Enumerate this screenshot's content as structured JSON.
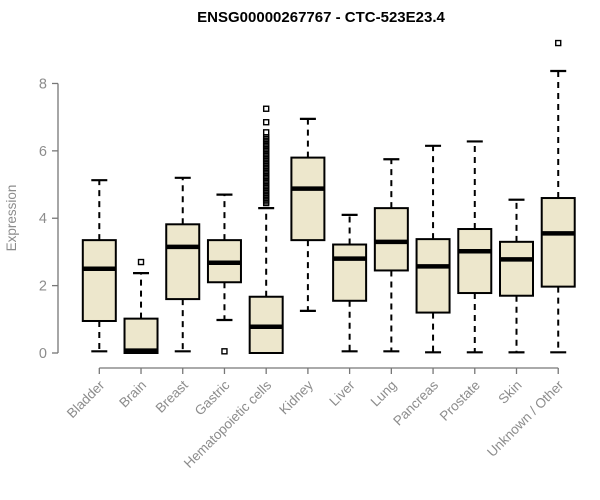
{
  "colors": {
    "background": "#FFFFFF",
    "box_fill": "#EDE7CC",
    "box_stroke": "#000000",
    "median": "#000000",
    "whisker": "#000000",
    "outlier": "#000000",
    "axis_line": "#777777",
    "axis_text": "#8C8C8C",
    "title_text": "#000000"
  },
  "chart_data": {
    "type": "boxplot",
    "title": "ENSG00000267767 - CTC-523E23.4",
    "ylabel": "Expression",
    "xlabel": "",
    "ylim": [
      0,
      8
    ],
    "yticks": [
      0,
      2,
      4,
      6,
      8
    ],
    "grid": false,
    "legend": "none",
    "categories": [
      "Bladder",
      "Brain",
      "Breast",
      "Gastric",
      "Hematopoietic cells",
      "Kidney",
      "Liver",
      "Lung",
      "Pancreas",
      "Prostate",
      "Skin",
      "Unknown / Other"
    ],
    "series": [
      {
        "category": "Bladder",
        "low": 0.05,
        "q1": 0.95,
        "median": 2.5,
        "q3": 3.35,
        "high": 5.13,
        "outliers": []
      },
      {
        "category": "Brain",
        "low": null,
        "q1": 0,
        "median": 0.07,
        "q3": 1.02,
        "high": 2.37,
        "outliers": [
          2.7
        ]
      },
      {
        "category": "Breast",
        "low": 0.05,
        "q1": 1.6,
        "median": 3.15,
        "q3": 3.82,
        "high": 5.2,
        "outliers": []
      },
      {
        "category": "Gastric",
        "low": 0.98,
        "q1": 2.1,
        "median": 2.68,
        "q3": 3.35,
        "high": 4.7,
        "outliers": [
          0.05
        ]
      },
      {
        "category": "Hematopoietic cells",
        "low": null,
        "q1": 0,
        "median": 0.78,
        "q3": 1.67,
        "high": 4.3,
        "outliers": [
          4.45,
          4.5,
          4.55,
          4.6,
          4.65,
          4.7,
          4.75,
          4.8,
          4.85,
          4.9,
          4.95,
          5.0,
          5.05,
          5.1,
          5.15,
          5.2,
          5.25,
          5.3,
          5.35,
          5.4,
          5.45,
          5.5,
          5.55,
          5.6,
          5.65,
          5.7,
          5.75,
          5.8,
          5.85,
          5.9,
          5.95,
          6.0,
          6.05,
          6.1,
          6.15,
          6.2,
          6.25,
          6.3,
          6.35,
          6.4,
          6.55,
          6.85,
          7.25
        ]
      },
      {
        "category": "Kidney",
        "low": 1.25,
        "q1": 3.35,
        "median": 4.88,
        "q3": 5.8,
        "high": 6.95,
        "outliers": []
      },
      {
        "category": "Liver",
        "low": 0.05,
        "q1": 1.55,
        "median": 2.8,
        "q3": 3.22,
        "high": 4.1,
        "outliers": []
      },
      {
        "category": "Lung",
        "low": 0.05,
        "q1": 2.45,
        "median": 3.3,
        "q3": 4.3,
        "high": 5.75,
        "outliers": []
      },
      {
        "category": "Pancreas",
        "low": 0.02,
        "q1": 1.2,
        "median": 2.57,
        "q3": 3.38,
        "high": 6.15,
        "outliers": []
      },
      {
        "category": "Prostate",
        "low": 0.02,
        "q1": 1.78,
        "median": 3.02,
        "q3": 3.68,
        "high": 6.28,
        "outliers": []
      },
      {
        "category": "Skin",
        "low": 0.02,
        "q1": 1.7,
        "median": 2.78,
        "q3": 3.3,
        "high": 4.55,
        "outliers": []
      },
      {
        "category": "Unknown / Other",
        "low": 0.02,
        "q1": 1.97,
        "median": 3.55,
        "q3": 4.6,
        "high": 8.37,
        "outliers": [
          9.2
        ]
      }
    ]
  }
}
